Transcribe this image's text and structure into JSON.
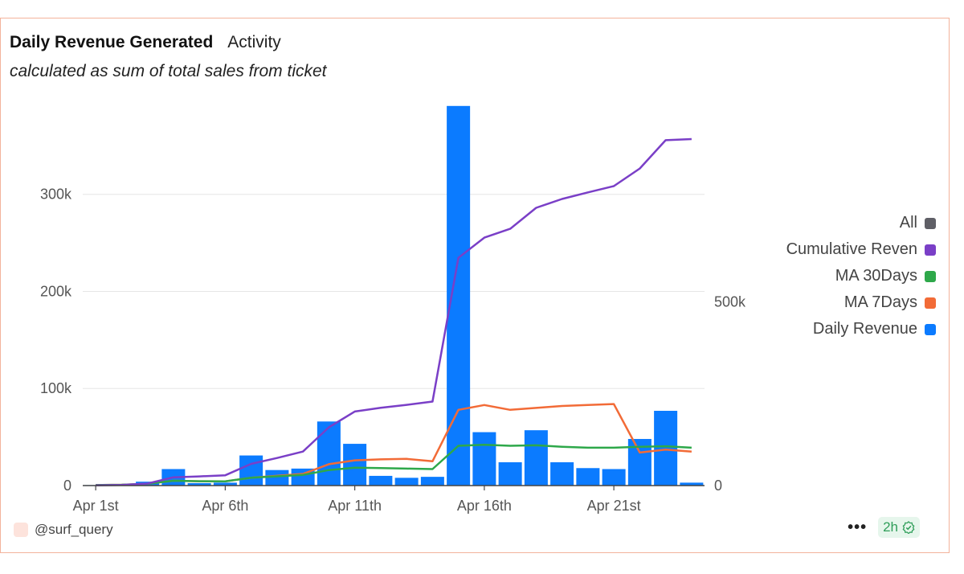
{
  "header": {
    "title": "Daily Revenue Generated",
    "tab": "Activity",
    "subtitle": "calculated as sum of total sales from ticket"
  },
  "legend": [
    {
      "label": "All",
      "color": "#5f5f66"
    },
    {
      "label": "Cumulative Reven",
      "color": "#7a3fc7"
    },
    {
      "label": "MA 30Days",
      "color": "#2ea84a"
    },
    {
      "label": "MA 7Days",
      "color": "#f26b37"
    },
    {
      "label": "Daily Revenue",
      "color": "#0b7bff"
    }
  ],
  "footer": {
    "user": "@surf_query",
    "more": "•••",
    "freshness": "2h"
  },
  "chart_data": {
    "type": "bar",
    "x": [
      "Apr 1st",
      "Apr 2nd",
      "Apr 3rd",
      "Apr 4th",
      "Apr 5th",
      "Apr 6th",
      "Apr 7th",
      "Apr 8th",
      "Apr 9th",
      "Apr 10th",
      "Apr 11th",
      "Apr 12th",
      "Apr 13th",
      "Apr 14th",
      "Apr 15th",
      "Apr 16th",
      "Apr 17th",
      "Apr 18th",
      "Apr 19th",
      "Apr 20th",
      "Apr 21st",
      "Apr 22nd",
      "Apr 23rd",
      "Apr 24th"
    ],
    "xticks": [
      "Apr 1st",
      "Apr 6th",
      "Apr 11th",
      "Apr 16th",
      "Apr 21st"
    ],
    "left_axis": {
      "ticks": [
        0,
        100000,
        200000,
        300000
      ],
      "tick_labels": [
        "0",
        "100k",
        "200k",
        "300k"
      ],
      "ylim": [
        0,
        390000
      ]
    },
    "right_axis": {
      "ticks": [
        0,
        500000
      ],
      "tick_labels": [
        "0",
        "500k"
      ],
      "ylim": [
        0,
        1030000
      ]
    },
    "grid": true,
    "legend_position": "right",
    "series": [
      {
        "name": "Daily Revenue",
        "kind": "bar",
        "axis": "left",
        "color": "#0b7bff",
        "values": [
          500,
          1000,
          4000,
          17000,
          2500,
          3000,
          31000,
          16000,
          17500,
          66000,
          43000,
          10000,
          8000,
          9000,
          391000,
          55000,
          24000,
          57000,
          24000,
          18000,
          17000,
          48000,
          77000,
          3000
        ]
      },
      {
        "name": "MA 7Days",
        "kind": "line",
        "axis": "left",
        "color": "#f26b37",
        "values": [
          500,
          800,
          1800,
          5000,
          4500,
          4300,
          8000,
          10000,
          12000,
          22000,
          26000,
          27000,
          27500,
          25000,
          78000,
          83000,
          78000,
          80000,
          82000,
          83000,
          84000,
          34000,
          37000,
          35000
        ]
      },
      {
        "name": "MA 30Days",
        "kind": "line",
        "axis": "left",
        "color": "#2ea84a",
        "values": [
          500,
          800,
          1800,
          5000,
          4500,
          4300,
          8000,
          9500,
          11000,
          16000,
          18500,
          18000,
          17500,
          17000,
          41000,
          42000,
          41000,
          41500,
          40000,
          39000,
          39000,
          40000,
          40500,
          39000
        ]
      },
      {
        "name": "Cumulative Reven",
        "kind": "line",
        "axis": "right",
        "color": "#7a3fc7",
        "values": [
          500,
          1500,
          5500,
          22500,
          25000,
          28000,
          59000,
          75000,
          92500,
          158500,
          201500,
          211500,
          219500,
          228500,
          619500,
          674500,
          698500,
          755500,
          779500,
          797500,
          814500,
          862500,
          939500,
          942500
        ]
      }
    ]
  }
}
